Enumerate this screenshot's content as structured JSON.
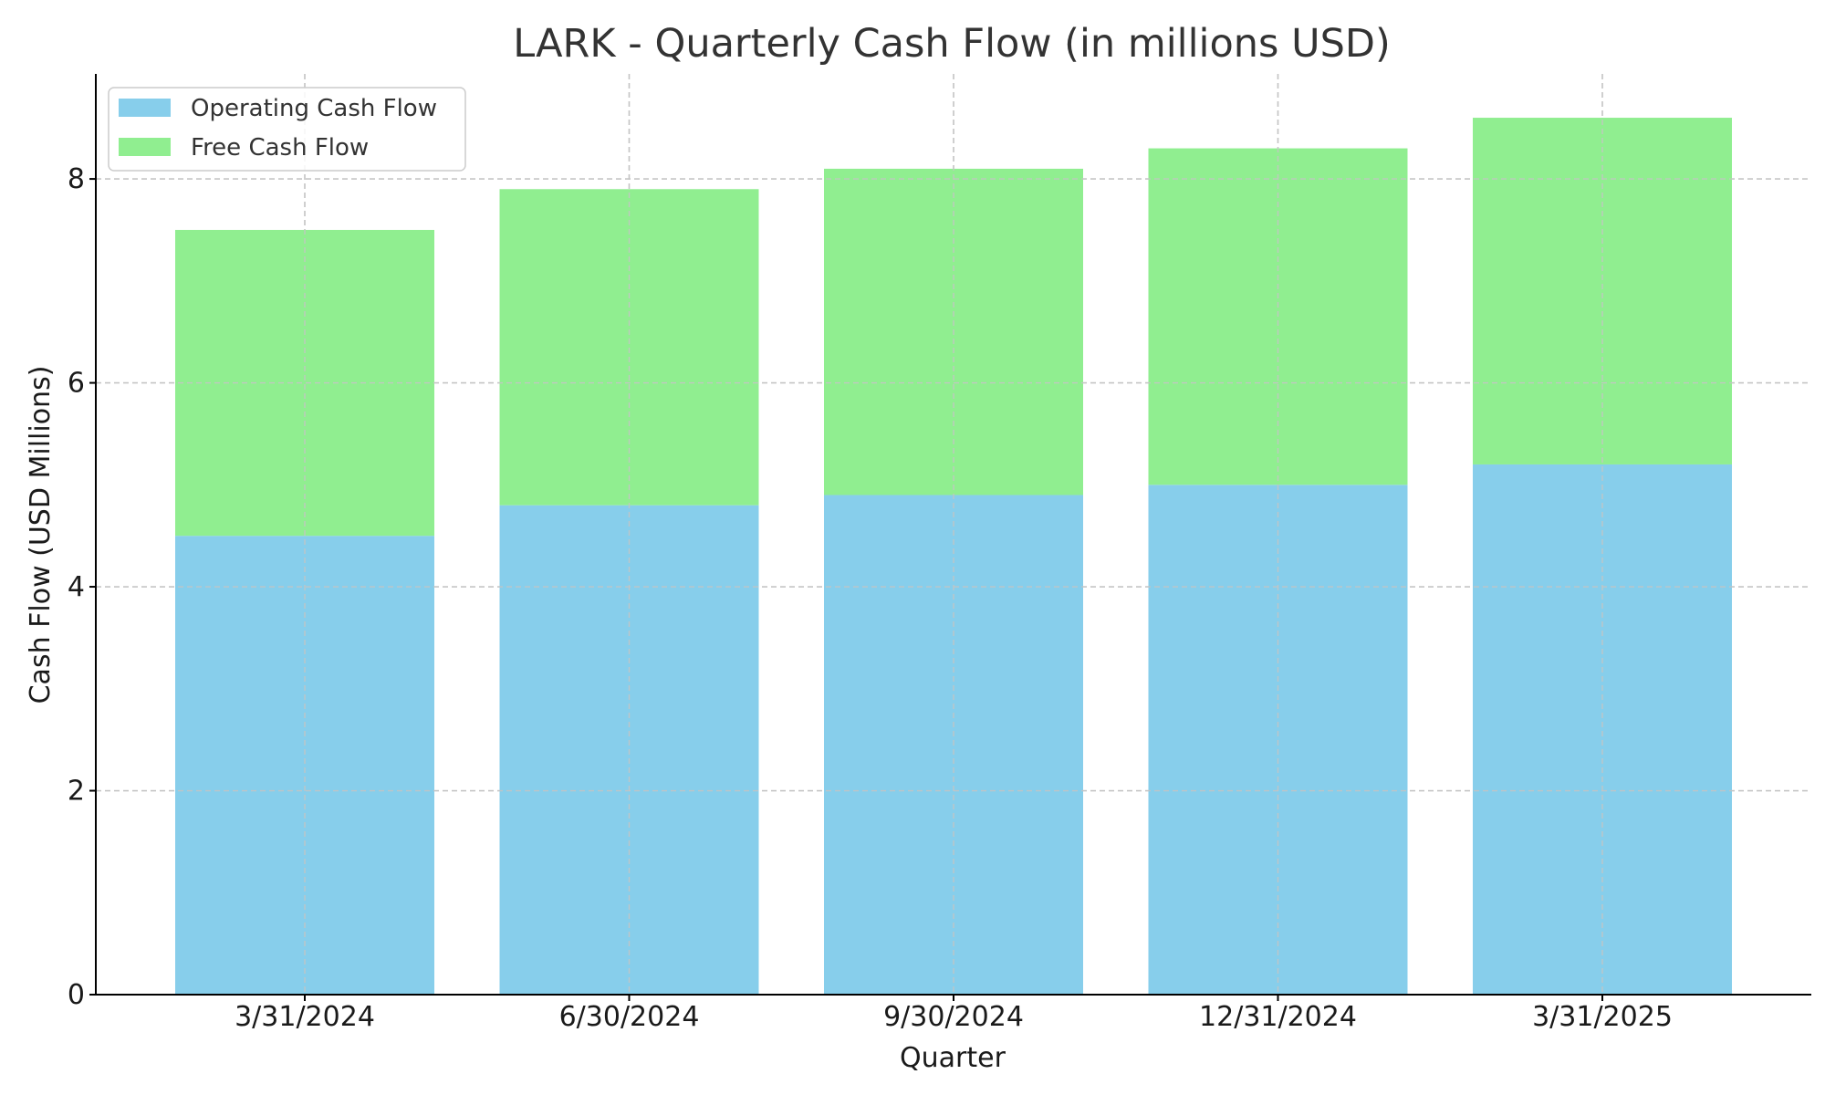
{
  "chart_data": {
    "type": "bar",
    "stacked": true,
    "title": "LARK - Quarterly Cash Flow (in millions USD)",
    "xlabel": "Quarter",
    "ylabel": "Cash Flow (USD Millions)",
    "categories": [
      "3/31/2024",
      "6/30/2024",
      "9/30/2024",
      "12/31/2024",
      "3/31/2025"
    ],
    "series": [
      {
        "name": "Operating Cash Flow",
        "color": "#87CEEB",
        "values": [
          4.5,
          4.8,
          4.9,
          5.0,
          5.2
        ]
      },
      {
        "name": "Free Cash Flow",
        "color": "#90EE90",
        "values": [
          3.0,
          3.1,
          3.2,
          3.3,
          3.4
        ]
      }
    ],
    "ylim": [
      0,
      9.03
    ],
    "yticks": [
      0,
      2,
      4,
      6,
      8
    ],
    "ytick_labels": [
      "0",
      "2",
      "4",
      "6",
      "8"
    ],
    "grid": true,
    "legend_position": "top-left"
  }
}
